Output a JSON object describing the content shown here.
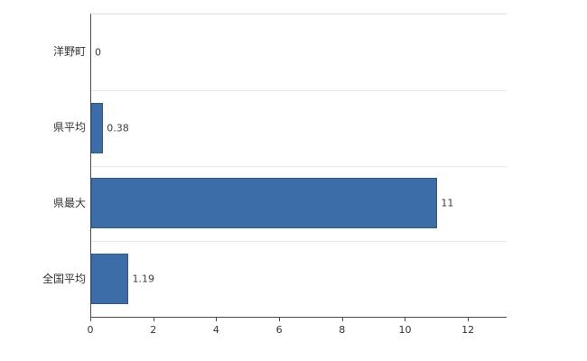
{
  "chart_data": {
    "type": "bar",
    "orientation": "horizontal",
    "title": "",
    "categories": [
      "洋野町",
      "県平均",
      "県最大",
      "全国平均"
    ],
    "values": [
      0,
      0.38,
      11,
      1.19
    ],
    "value_labels": [
      "0",
      "0.38",
      "11",
      "1.19"
    ],
    "xlabel": "",
    "ylabel": "",
    "xlim": [
      0,
      13.2
    ],
    "x_ticks": [
      0,
      2,
      4,
      6,
      8,
      10,
      12
    ],
    "x_tick_labels": [
      "0",
      "2",
      "4",
      "6",
      "8",
      "10",
      "12"
    ],
    "grid": "horizontal-band-separators",
    "legend": "none",
    "bar_color": "#3c6da8",
    "bar_border_color": "#2f5a8e",
    "axis_color": "#4a4a4a",
    "gridline_color": "#e9e9e9",
    "label_color": "#333333",
    "background": "#ffffff"
  }
}
